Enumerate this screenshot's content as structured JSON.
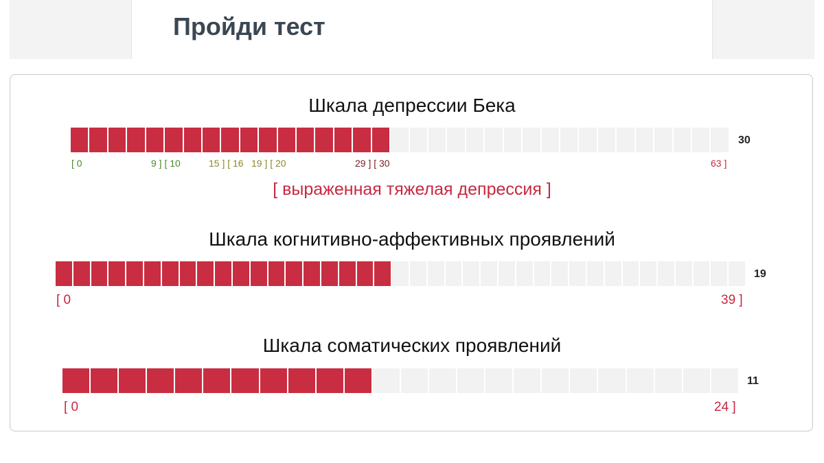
{
  "header": {
    "title": "Пройди тест"
  },
  "chart_data": [
    {
      "type": "bar",
      "title": "Шкала депрессии Бека",
      "value": 30,
      "range": [
        0,
        63
      ],
      "segments": 35,
      "filled_segments": 17,
      "score_label": "30",
      "verdict": "[ выраженная тяжелая депрессия ]",
      "tick_labels": [
        {
          "text": "[ 0",
          "color": "#4a8a2a"
        },
        {
          "text": "9 ] [ 10",
          "color": "#4a8a2a"
        },
        {
          "text": "15 ] [ 16",
          "color": "#8a8a2a"
        },
        {
          "text": "19 ] [ 20",
          "color": "#8a8a2a"
        },
        {
          "text": "29 ] [ 30",
          "color": "#7a1a22"
        },
        {
          "text": "63 ]",
          "color": "#c7283f"
        }
      ]
    },
    {
      "type": "bar",
      "title": "Шкала когнитивно-аффективных проявлений",
      "value": 19,
      "range": [
        0,
        39
      ],
      "segments": 39,
      "filled_segments": 19,
      "score_label": "19",
      "tick_labels": [
        {
          "text": "[ 0",
          "color": "#c7283f"
        },
        {
          "text": "39 ]",
          "color": "#c7283f"
        }
      ]
    },
    {
      "type": "bar",
      "title": "Шкала соматических проявлений",
      "value": 11,
      "range": [
        0,
        24
      ],
      "segments": 24,
      "filled_segments": 11,
      "score_label": "11",
      "tick_labels": [
        {
          "text": "[ 0",
          "color": "#c7283f"
        },
        {
          "text": "24 ]",
          "color": "#c7283f"
        }
      ]
    }
  ],
  "colors": {
    "filled": "#c92d41",
    "empty": "#f2f2f2",
    "accent": "#c7283f"
  }
}
